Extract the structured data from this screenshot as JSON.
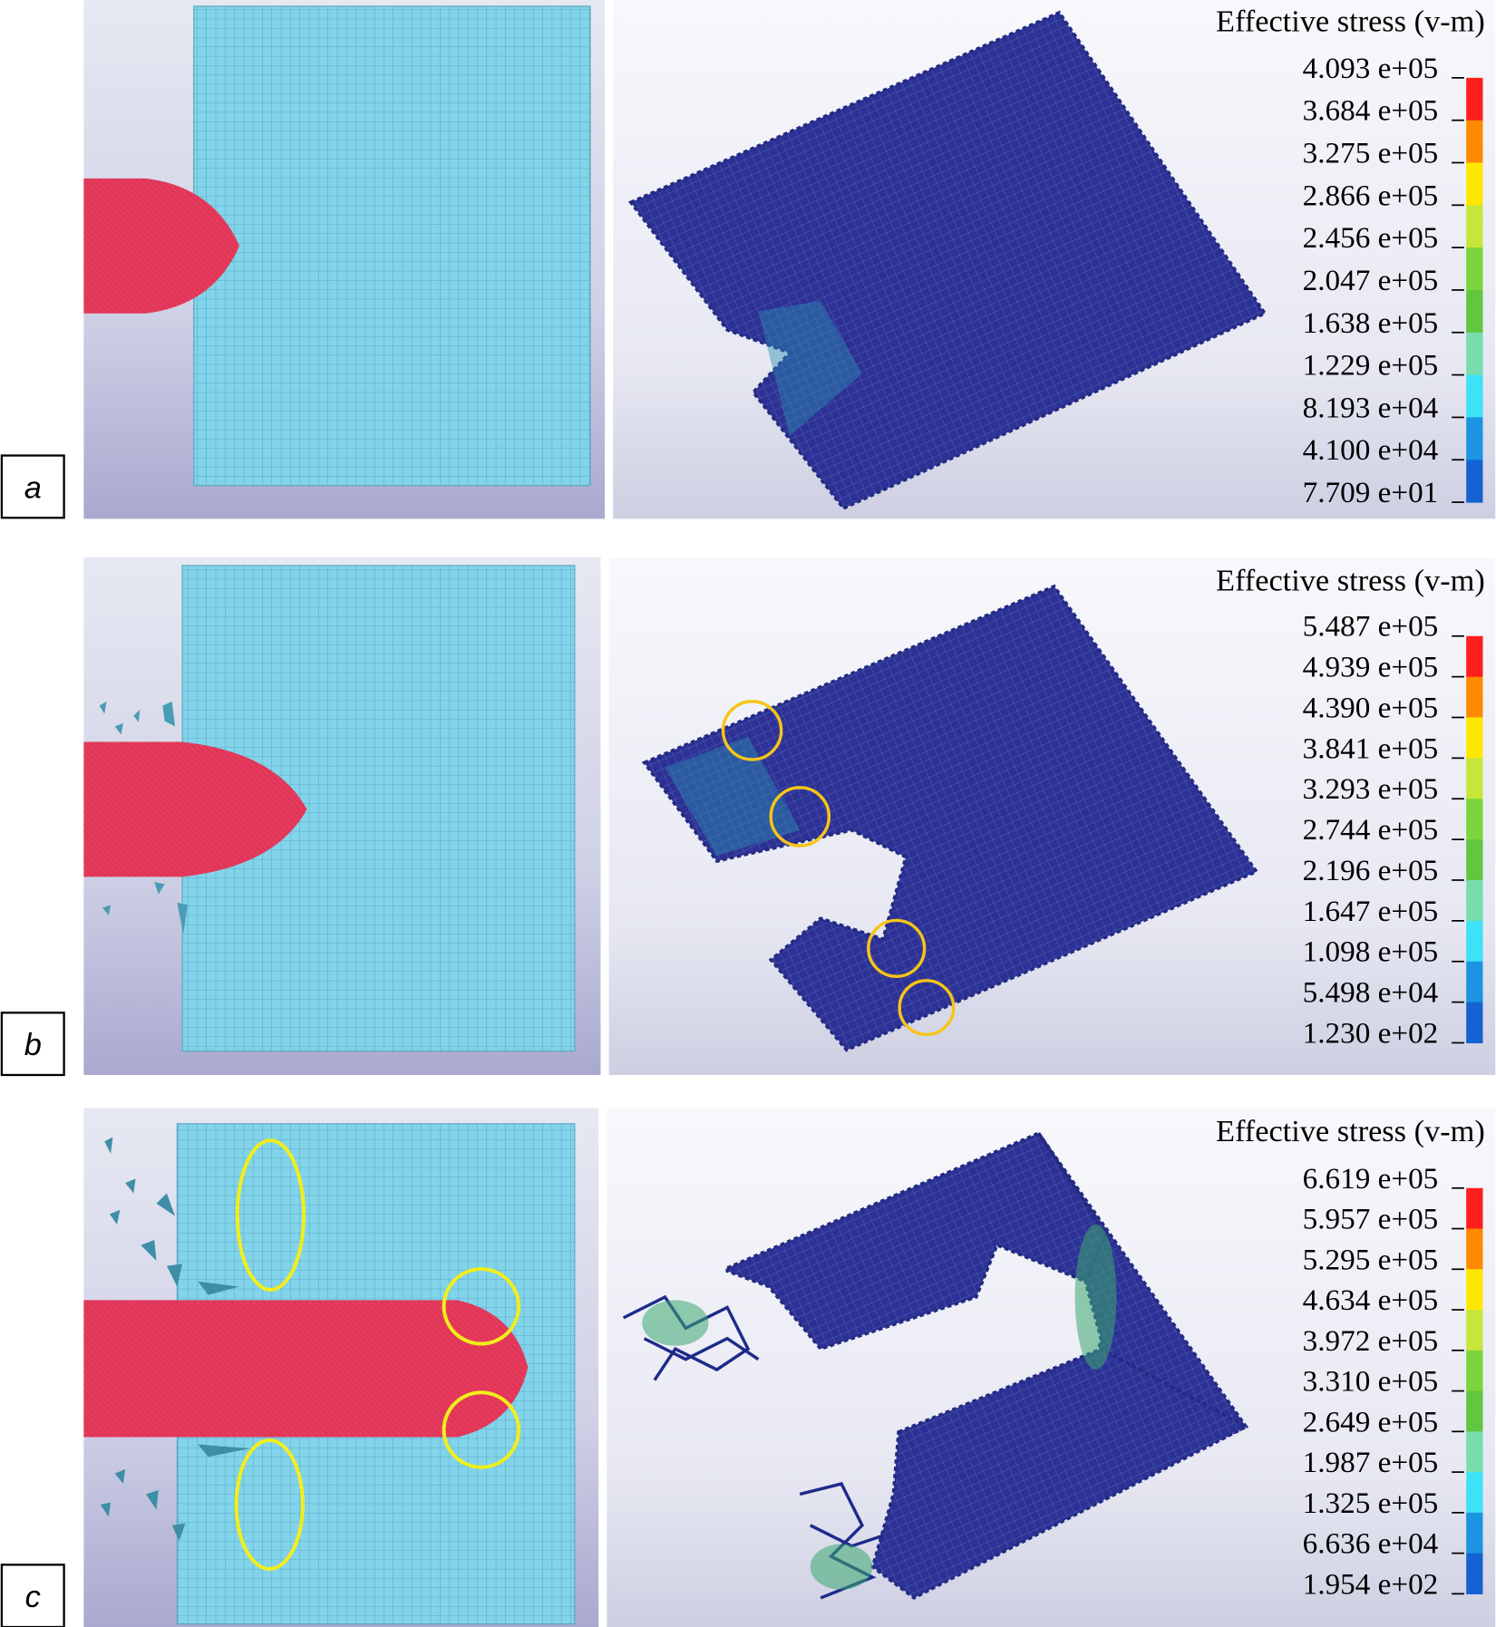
{
  "figure": {
    "panels": [
      {
        "label": "a",
        "legend": {
          "title": "Effective stress (v-m)",
          "values": [
            "4.093 e+05",
            "3.684 e+05",
            "3.275 e+05",
            "2.866 e+05",
            "2.456 e+05",
            "2.047 e+05",
            "1.638 e+05",
            "1.229 e+05",
            "8.193 e+04",
            "4.100 e+04",
            "7.709 e+01"
          ]
        }
      },
      {
        "label": "b",
        "legend": {
          "title": "Effective stress (v-m)",
          "values": [
            "5.487 e+05",
            "4.939 e+05",
            "4.390 e+05",
            "3.841 e+05",
            "3.293 e+05",
            "2.744 e+05",
            "2.196 e+05",
            "1.647 e+05",
            "1.098 e+05",
            "5.498 e+04",
            "1.230 e+02"
          ]
        }
      },
      {
        "label": "c",
        "legend": {
          "title": "Effective stress (v-m)",
          "values": [
            "6.619 e+05",
            "5.957 e+05",
            "5.295 e+05",
            "4.634 e+05",
            "3.972 e+05",
            "3.310 e+05",
            "2.649 e+05",
            "1.987 e+05",
            "1.325 e+05",
            "6.636 e+04",
            "1.954 e+02"
          ]
        }
      }
    ],
    "colorbar_colors": [
      "#ff1e1e",
      "#ff8a00",
      "#ffe800",
      "#c6e63a",
      "#7ed43c",
      "#62c640",
      "#78dcae",
      "#3ee2f4",
      "#1b94e2",
      "#1462d2"
    ],
    "colors": {
      "projectile": "#e8385a",
      "mesh": "#7fd3e8",
      "plate": "#2a2f9a",
      "highlight": "#f5d21a"
    }
  }
}
